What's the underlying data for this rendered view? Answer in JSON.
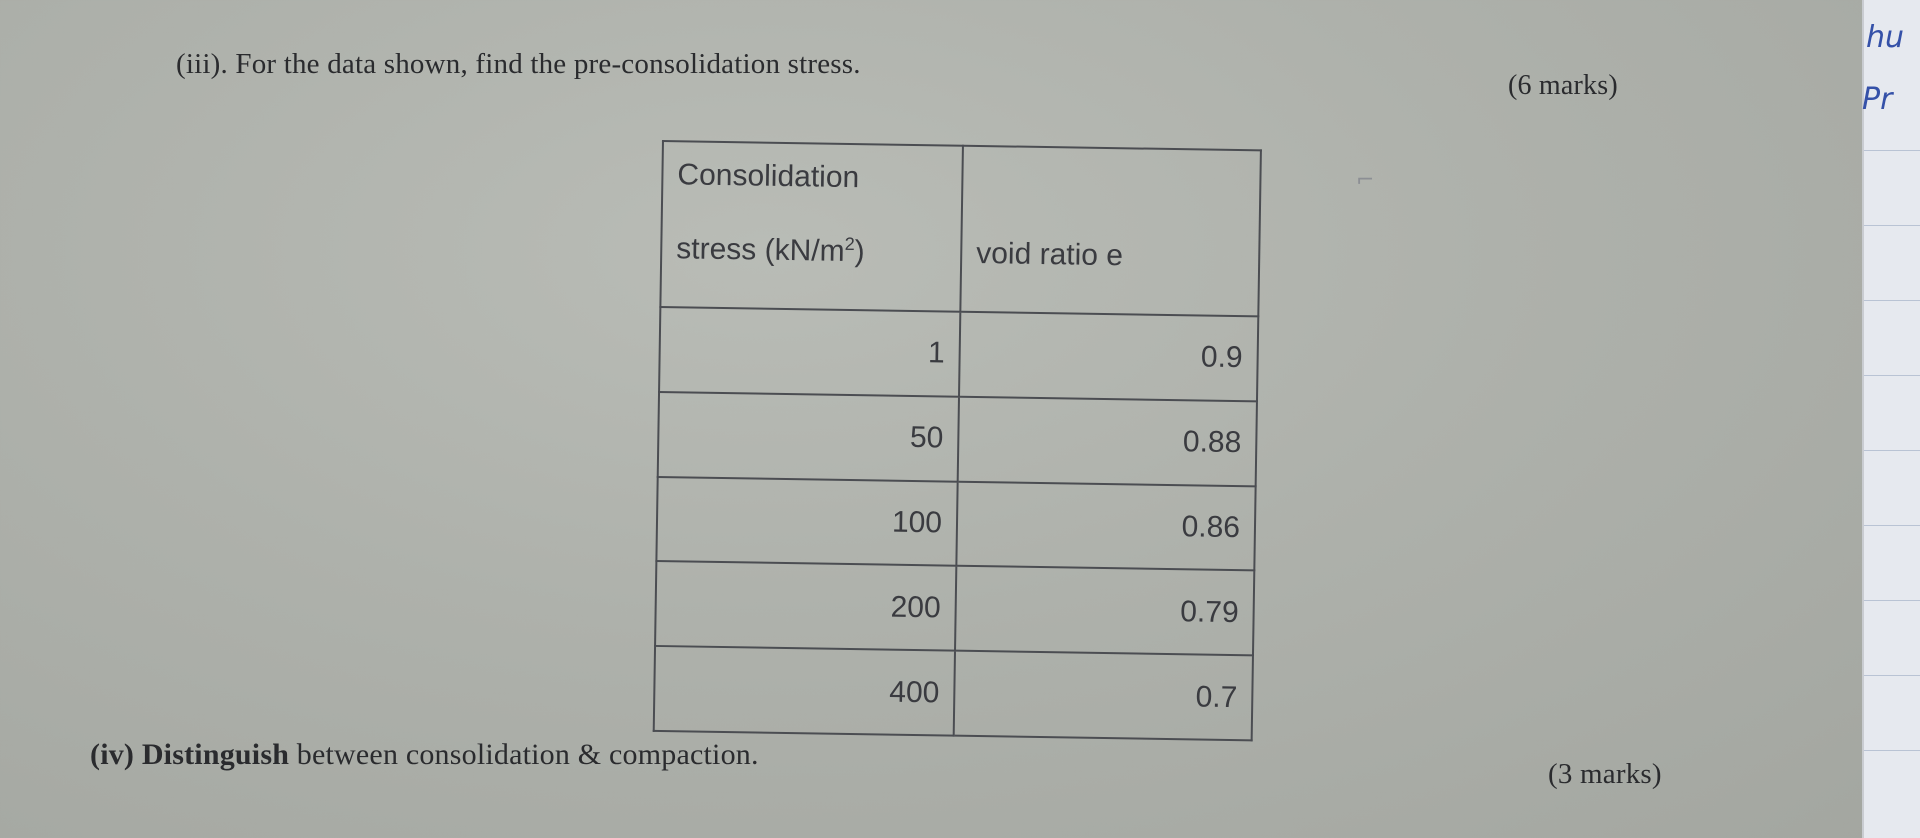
{
  "question_iii": {
    "text": "(iii). For the data shown, find the pre-consolidation stress.",
    "marks": "(6 marks)"
  },
  "table": {
    "header_col1_line1": "Consolidation",
    "header_col1_line2": "stress (kN/m",
    "header_col1_sup": "2",
    "header_col1_close": ")",
    "header_col2": "void ratio e",
    "rows": [
      {
        "stress": "1",
        "void_ratio": "0.9"
      },
      {
        "stress": "50",
        "void_ratio": "0.88"
      },
      {
        "stress": "100",
        "void_ratio": "0.86"
      },
      {
        "stress": "200",
        "void_ratio": "0.79"
      },
      {
        "stress": "400",
        "void_ratio": "0.7"
      }
    ]
  },
  "question_iv": {
    "label": "(iv) Distinguish",
    "text": " between consolidation & compaction.",
    "marks": "(3 marks)"
  },
  "handwriting": {
    "line1": "hu",
    "line2": "Pr"
  },
  "colors": {
    "paper": "#aeb1ab",
    "ink": "#2a2b2e",
    "pen": "#3551a8"
  }
}
